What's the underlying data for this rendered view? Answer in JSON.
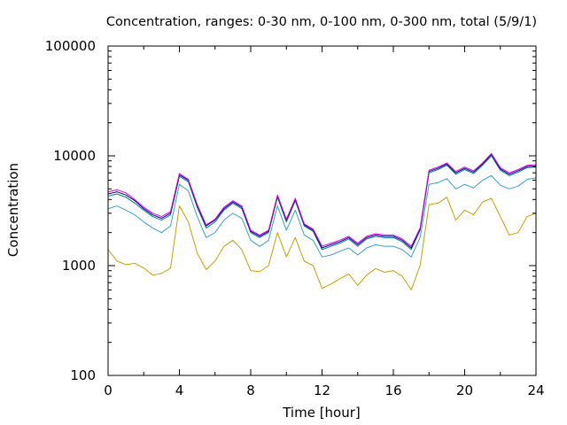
{
  "chart_data": {
    "type": "line",
    "title": "Concentration, ranges: 0-30 nm, 0-100 nm, 0-300 nm, total (5/9/1)",
    "xlabel": "Time [hour]",
    "ylabel": "Concentration",
    "xlim": [
      0,
      24
    ],
    "ylim": [
      100,
      100000
    ],
    "yscale": "log",
    "grid": false,
    "legend": "none",
    "x_ticks": [
      "0",
      "4",
      "8",
      "12",
      "16",
      "20",
      "24"
    ],
    "y_ticks": [
      "100",
      "1000",
      "10000",
      "100000"
    ],
    "x": [
      0,
      0.5,
      1,
      1.5,
      2,
      2.5,
      3,
      3.5,
      4,
      4.5,
      5,
      5.5,
      6,
      6.5,
      7,
      7.5,
      8,
      8.5,
      9,
      9.5,
      10,
      10.5,
      11,
      11.5,
      12,
      12.5,
      13,
      13.5,
      14,
      14.5,
      15,
      15.5,
      16,
      16.5,
      17,
      17.5,
      18,
      18.5,
      19,
      19.5,
      20,
      20.5,
      21,
      21.5,
      22,
      22.5,
      23,
      23.5,
      24
    ],
    "series": [
      {
        "color": "#c8a000",
        "values": [
          1400,
          1100,
          1020,
          1050,
          950,
          820,
          850,
          950,
          3500,
          2500,
          1300,
          920,
          1100,
          1500,
          1700,
          1400,
          900,
          880,
          1000,
          2000,
          1200,
          1800,
          1100,
          1000,
          620,
          680,
          760,
          840,
          660,
          820,
          940,
          870,
          900,
          800,
          600,
          1000,
          3600,
          3700,
          4200,
          2600,
          3200,
          2900,
          3800,
          4100,
          2800,
          1900,
          2000,
          2800,
          3000
        ]
      },
      {
        "color": "#3aa0d0",
        "values": [
          3300,
          3500,
          3200,
          2900,
          2500,
          2200,
          2000,
          2300,
          5500,
          4800,
          2800,
          1800,
          2000,
          2600,
          3000,
          2700,
          1700,
          1500,
          1700,
          3500,
          2100,
          3200,
          1900,
          1700,
          1200,
          1250,
          1350,
          1450,
          1250,
          1450,
          1550,
          1500,
          1500,
          1400,
          1200,
          1800,
          5500,
          5700,
          6200,
          5000,
          5500,
          5100,
          6000,
          6600,
          5400,
          5000,
          5300,
          6100,
          6300
        ]
      },
      {
        "color": "#008080",
        "values": [
          4300,
          4500,
          4200,
          3700,
          3200,
          2800,
          2600,
          2900,
          6500,
          5800,
          3400,
          2200,
          2500,
          3200,
          3700,
          3300,
          2000,
          1800,
          2000,
          4200,
          2500,
          3900,
          2300,
          2050,
          1400,
          1500,
          1600,
          1750,
          1500,
          1750,
          1850,
          1800,
          1800,
          1650,
          1400,
          2100,
          7000,
          7500,
          8200,
          6800,
          7500,
          6900,
          8200,
          10000,
          7400,
          6600,
          7100,
          7800,
          7900
        ]
      },
      {
        "color": "#0000a0",
        "values": [
          4500,
          4700,
          4400,
          3900,
          3300,
          2900,
          2700,
          3000,
          6700,
          6000,
          3500,
          2300,
          2600,
          3300,
          3800,
          3400,
          2050,
          1850,
          2050,
          4300,
          2600,
          4000,
          2350,
          2100,
          1450,
          1550,
          1650,
          1800,
          1550,
          1800,
          1900,
          1850,
          1850,
          1700,
          1450,
          2150,
          7200,
          7700,
          8400,
          7000,
          7700,
          7100,
          8400,
          10300,
          7600,
          6800,
          7300,
          8000,
          8100
        ]
      },
      {
        "color": "#e000e0",
        "values": [
          4700,
          4900,
          4600,
          4000,
          3400,
          3000,
          2800,
          3100,
          6900,
          6100,
          3600,
          2350,
          2650,
          3400,
          3900,
          3500,
          2100,
          1900,
          2100,
          4400,
          2650,
          4100,
          2400,
          2150,
          1500,
          1600,
          1700,
          1850,
          1600,
          1850,
          1950,
          1900,
          1900,
          1750,
          1500,
          2200,
          7400,
          7900,
          8600,
          7200,
          7900,
          7300,
          8600,
          10500,
          7800,
          7000,
          7500,
          8200,
          8300
        ]
      }
    ]
  }
}
